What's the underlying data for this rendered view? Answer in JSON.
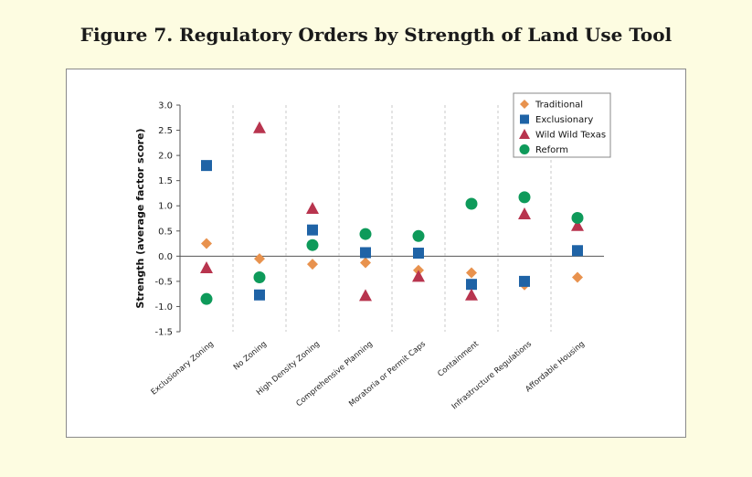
{
  "figure_title": "Figure 7. Regulatory Orders by Strength of Land Use Tool",
  "chart_data": {
    "type": "scatter",
    "title": "",
    "xlabel": "",
    "ylabel": "Strength (average factor score)",
    "ylim": [
      -1.5,
      3.0
    ],
    "yticks": [
      "3.0",
      "2.5",
      "2.0",
      "1.5",
      "1.0",
      "0.5",
      "0.0",
      "-0.5",
      "-1.0",
      "-1.5"
    ],
    "grid": false,
    "legend_position": "top-right",
    "categories": [
      "Exclusionary Zoning",
      "No Zoning",
      "High Density Zoning",
      "Comprehensive Planning",
      "Moratoria or Permit Caps",
      "Containment",
      "Infrastructure Regulations",
      "Affordable Housing"
    ],
    "series": [
      {
        "name": "Traditional",
        "marker": "diamond",
        "color": "#e8924e",
        "values": [
          0.25,
          -0.05,
          -0.16,
          -0.13,
          -0.28,
          -0.33,
          -0.57,
          -0.42
        ]
      },
      {
        "name": "Exclusionary",
        "marker": "square",
        "color": "#1f63a6",
        "values": [
          1.8,
          -0.77,
          0.52,
          0.07,
          0.06,
          -0.56,
          -0.5,
          0.11
        ]
      },
      {
        "name": "Wild Wild Texas",
        "marker": "triangle",
        "color": "#b8344e",
        "values": [
          -0.23,
          2.55,
          0.95,
          -0.78,
          -0.4,
          -0.77,
          0.84,
          0.61
        ]
      },
      {
        "name": "Reform",
        "marker": "circle",
        "color": "#0e9a5a",
        "values": [
          -0.85,
          -0.42,
          0.22,
          0.44,
          0.4,
          1.04,
          1.17,
          0.76
        ]
      }
    ]
  }
}
